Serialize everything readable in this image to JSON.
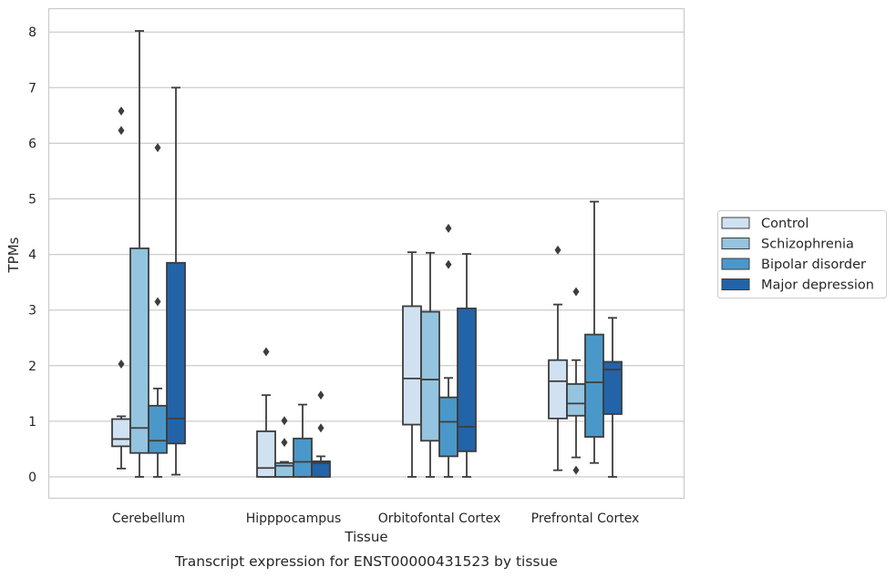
{
  "chart_data": {
    "type": "box",
    "xlabel": "Tissue",
    "ylabel": "TPMs",
    "caption": "Transcript expression for ENST00000431523 by tissue",
    "ylim": [
      -0.4,
      8.45
    ],
    "yticks": [
      0,
      1,
      2,
      3,
      4,
      5,
      6,
      7,
      8
    ],
    "grid": "horizontal",
    "legend_position": "right",
    "categories": [
      "Cerebellum",
      "Hipppocampus",
      "Orbitofontal Cortex",
      "Prefrontal Cortex"
    ],
    "series": [
      {
        "name": "Control",
        "color": "#d0e1f2",
        "boxes": [
          {
            "min": 0.15,
            "q1": 0.55,
            "median": 0.68,
            "q3": 1.04,
            "max": 1.09,
            "outliers": [
              2.03,
              6.23,
              6.58
            ]
          },
          {
            "min": 0.0,
            "q1": 0.0,
            "median": 0.16,
            "q3": 0.82,
            "max": 1.47,
            "outliers": [
              2.25
            ]
          },
          {
            "min": 0.0,
            "q1": 0.94,
            "median": 1.77,
            "q3": 3.07,
            "max": 4.04,
            "outliers": []
          },
          {
            "min": 0.12,
            "q1": 1.05,
            "median": 1.72,
            "q3": 2.1,
            "max": 3.1,
            "outliers": [
              4.08
            ]
          }
        ]
      },
      {
        "name": "Schizophrenia",
        "color": "#94c4df",
        "boxes": [
          {
            "min": 0.0,
            "q1": 0.43,
            "median": 0.88,
            "q3": 4.11,
            "max": 8.02,
            "outliers": []
          },
          {
            "min": 0.0,
            "q1": 0.0,
            "median": 0.2,
            "q3": 0.25,
            "max": 0.27,
            "outliers": [
              0.62,
              1.01
            ]
          },
          {
            "min": 0.0,
            "q1": 0.65,
            "median": 1.75,
            "q3": 2.97,
            "max": 4.03,
            "outliers": []
          },
          {
            "min": 0.35,
            "q1": 1.1,
            "median": 1.32,
            "q3": 1.67,
            "max": 2.1,
            "outliers": [
              0.12,
              3.33
            ]
          }
        ]
      },
      {
        "name": "Bipolar disorder",
        "color": "#4a98c9",
        "boxes": [
          {
            "min": 0.0,
            "q1": 0.43,
            "median": 0.65,
            "q3": 1.28,
            "max": 1.59,
            "outliers": [
              3.15,
              5.92
            ]
          },
          {
            "min": 0.0,
            "q1": 0.0,
            "median": 0.27,
            "q3": 0.69,
            "max": 1.3,
            "outliers": []
          },
          {
            "min": 0.0,
            "q1": 0.37,
            "median": 0.99,
            "q3": 1.43,
            "max": 1.78,
            "outliers": [
              3.82,
              4.47
            ]
          },
          {
            "min": 0.25,
            "q1": 0.72,
            "median": 1.7,
            "q3": 2.56,
            "max": 4.95,
            "outliers": []
          }
        ]
      },
      {
        "name": "Major depression",
        "color": "#2363a8",
        "boxes": [
          {
            "min": 0.04,
            "q1": 0.6,
            "median": 1.05,
            "q3": 3.85,
            "max": 7.0,
            "outliers": []
          },
          {
            "min": 0.0,
            "q1": 0.0,
            "median": 0.25,
            "q3": 0.28,
            "max": 0.37,
            "outliers": [
              0.88,
              1.47
            ]
          },
          {
            "min": 0.0,
            "q1": 0.46,
            "median": 0.9,
            "q3": 3.03,
            "max": 4.01,
            "outliers": []
          },
          {
            "min": 0.0,
            "q1": 1.13,
            "median": 1.93,
            "q3": 2.07,
            "max": 2.86,
            "outliers": []
          }
        ]
      }
    ]
  }
}
